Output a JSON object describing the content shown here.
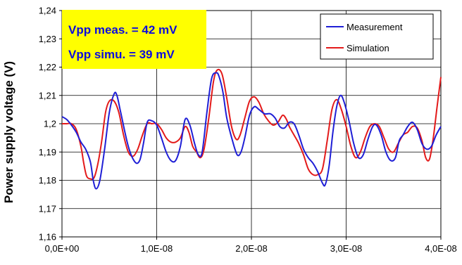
{
  "chart_data": {
    "type": "line",
    "title": "",
    "xlabel": "",
    "ylabel": "Power supply voltage (V)",
    "xlim": [
      0,
      4e-08
    ],
    "ylim": [
      1.16,
      1.24
    ],
    "xticks": [
      "0,0E+00",
      "1,0E-08",
      "2,0E-08",
      "3,0E-08",
      "4,0E-08"
    ],
    "xtick_values": [
      0,
      1e-08,
      2e-08,
      3e-08,
      4e-08
    ],
    "yticks": [
      "1,16",
      "1,17",
      "1,18",
      "1,19",
      "1,2",
      "1,21",
      "1,22",
      "1,23",
      "1,24"
    ],
    "ytick_values": [
      1.16,
      1.17,
      1.18,
      1.19,
      1.2,
      1.21,
      1.22,
      1.23,
      1.24
    ],
    "grid": {
      "x": true,
      "y": true
    },
    "legend_position": "top-right",
    "annotations": [
      "Vpp meas. = 42 mV",
      "Vpp simu. = 39 mV"
    ],
    "annotation_bg": "#ffff00",
    "annotation_color": "#0b0be0",
    "series": [
      {
        "name": "Measurement",
        "color": "#1f1fd6",
        "x": [
          0,
          5e-10,
          1e-09,
          1.5e-09,
          2e-09,
          2.5e-09,
          3e-09,
          3.3e-09,
          3.6e-09,
          4e-09,
          4.5e-09,
          5e-09,
          5.5e-09,
          5.8e-09,
          6.2e-09,
          7e-09,
          7.7e-09,
          8.2e-09,
          8.6e-09,
          9e-09,
          9.5e-09,
          1e-08,
          1.05e-08,
          1.1e-08,
          1.15e-08,
          1.2e-08,
          1.25e-08,
          1.3e-08,
          1.35e-08,
          1.4e-08,
          1.44e-08,
          1.48e-08,
          1.53e-08,
          1.58e-08,
          1.63e-08,
          1.66e-08,
          1.7e-08,
          1.74e-08,
          1.8e-08,
          1.85e-08,
          1.89e-08,
          1.93e-08,
          1.98e-08,
          2.03e-08,
          2.08e-08,
          2.14e-08,
          2.2e-08,
          2.25e-08,
          2.3e-08,
          2.35e-08,
          2.4e-08,
          2.45e-08,
          2.5e-08,
          2.55e-08,
          2.6e-08,
          2.65e-08,
          2.7e-08,
          2.75e-08,
          2.78e-08,
          2.82e-08,
          2.86e-08,
          2.9e-08,
          2.94e-08,
          2.98e-08,
          3.03e-08,
          3.08e-08,
          3.13e-08,
          3.18e-08,
          3.23e-08,
          3.28e-08,
          3.32e-08,
          3.37e-08,
          3.42e-08,
          3.47e-08,
          3.52e-08,
          3.56e-08,
          3.6e-08,
          3.65e-08,
          3.7e-08,
          3.75e-08,
          3.8e-08,
          3.85e-08,
          3.9e-08,
          3.95e-08,
          4e-08
        ],
        "y": [
          1.2025,
          1.2015,
          1.1995,
          1.197,
          1.1935,
          1.191,
          1.1865,
          1.18,
          1.177,
          1.18,
          1.191,
          1.204,
          1.2105,
          1.21,
          1.204,
          1.192,
          1.1865,
          1.187,
          1.193,
          1.2005,
          1.201,
          1.1995,
          1.195,
          1.19,
          1.187,
          1.187,
          1.192,
          1.2015,
          1.1995,
          1.193,
          1.189,
          1.19,
          1.204,
          1.216,
          1.218,
          1.2165,
          1.211,
          1.202,
          1.194,
          1.189,
          1.19,
          1.195,
          1.203,
          1.206,
          1.205,
          1.2035,
          1.2035,
          1.202,
          1.199,
          1.1985,
          1.2005,
          1.2,
          1.196,
          1.191,
          1.188,
          1.186,
          1.183,
          1.179,
          1.1785,
          1.185,
          1.197,
          1.206,
          1.21,
          1.2075,
          1.201,
          1.193,
          1.188,
          1.189,
          1.1945,
          1.199,
          1.1995,
          1.196,
          1.19,
          1.187,
          1.188,
          1.194,
          1.196,
          1.199,
          1.2005,
          1.198,
          1.193,
          1.191,
          1.192,
          1.196,
          1.199
        ]
      },
      {
        "name": "Simulation",
        "color": "#e31a1a",
        "x": [
          0,
          5e-10,
          1e-09,
          1.5e-09,
          2e-09,
          2.3e-09,
          2.6e-09,
          3e-09,
          3.4e-09,
          3.8e-09,
          4.2e-09,
          4.6e-09,
          5e-09,
          5.5e-09,
          6e-09,
          6.5e-09,
          7e-09,
          7.5e-09,
          8e-09,
          8.5e-09,
          9e-09,
          9.5e-09,
          1e-08,
          1.05e-08,
          1.1e-08,
          1.15e-08,
          1.2e-08,
          1.25e-08,
          1.3e-08,
          1.34e-08,
          1.38e-08,
          1.42e-08,
          1.46e-08,
          1.5e-08,
          1.55e-08,
          1.6e-08,
          1.64e-08,
          1.69e-08,
          1.74e-08,
          1.79e-08,
          1.84e-08,
          1.88e-08,
          1.93e-08,
          1.98e-08,
          2.03e-08,
          2.08e-08,
          2.13e-08,
          2.18e-08,
          2.23e-08,
          2.28e-08,
          2.33e-08,
          2.37e-08,
          2.4e-08,
          2.45e-08,
          2.5e-08,
          2.55e-08,
          2.6e-08,
          2.65e-08,
          2.7e-08,
          2.75e-08,
          2.8e-08,
          2.85e-08,
          2.9e-08,
          2.95e-08,
          3e-08,
          3.05e-08,
          3.1e-08,
          3.15e-08,
          3.2e-08,
          3.25e-08,
          3.3e-08,
          3.35e-08,
          3.4e-08,
          3.45e-08,
          3.5e-08,
          3.55e-08,
          3.6e-08,
          3.65e-08,
          3.7e-08,
          3.75e-08,
          3.8e-08,
          3.84e-08,
          3.88e-08,
          3.92e-08,
          3.96e-08,
          4e-08
        ],
        "y": [
          1.2,
          1.2,
          1.2,
          1.198,
          1.192,
          1.186,
          1.1815,
          1.1805,
          1.181,
          1.186,
          1.194,
          1.204,
          1.208,
          1.208,
          1.204,
          1.196,
          1.19,
          1.1885,
          1.191,
          1.196,
          1.2,
          1.2,
          1.2,
          1.198,
          1.195,
          1.1935,
          1.1935,
          1.195,
          1.199,
          1.197,
          1.192,
          1.19,
          1.188,
          1.191,
          1.202,
          1.215,
          1.219,
          1.2175,
          1.209,
          1.199,
          1.1945,
          1.196,
          1.202,
          1.208,
          1.2095,
          1.2075,
          1.2035,
          1.201,
          1.1995,
          1.2005,
          1.203,
          1.2015,
          1.199,
          1.196,
          1.193,
          1.189,
          1.184,
          1.182,
          1.182,
          1.184,
          1.194,
          1.205,
          1.2085,
          1.205,
          1.199,
          1.192,
          1.188,
          1.19,
          1.195,
          1.199,
          1.2,
          1.199,
          1.195,
          1.191,
          1.19,
          1.193,
          1.196,
          1.197,
          1.199,
          1.1985,
          1.194,
          1.188,
          1.1875,
          1.195,
          1.206,
          1.2165
        ]
      }
    ]
  }
}
